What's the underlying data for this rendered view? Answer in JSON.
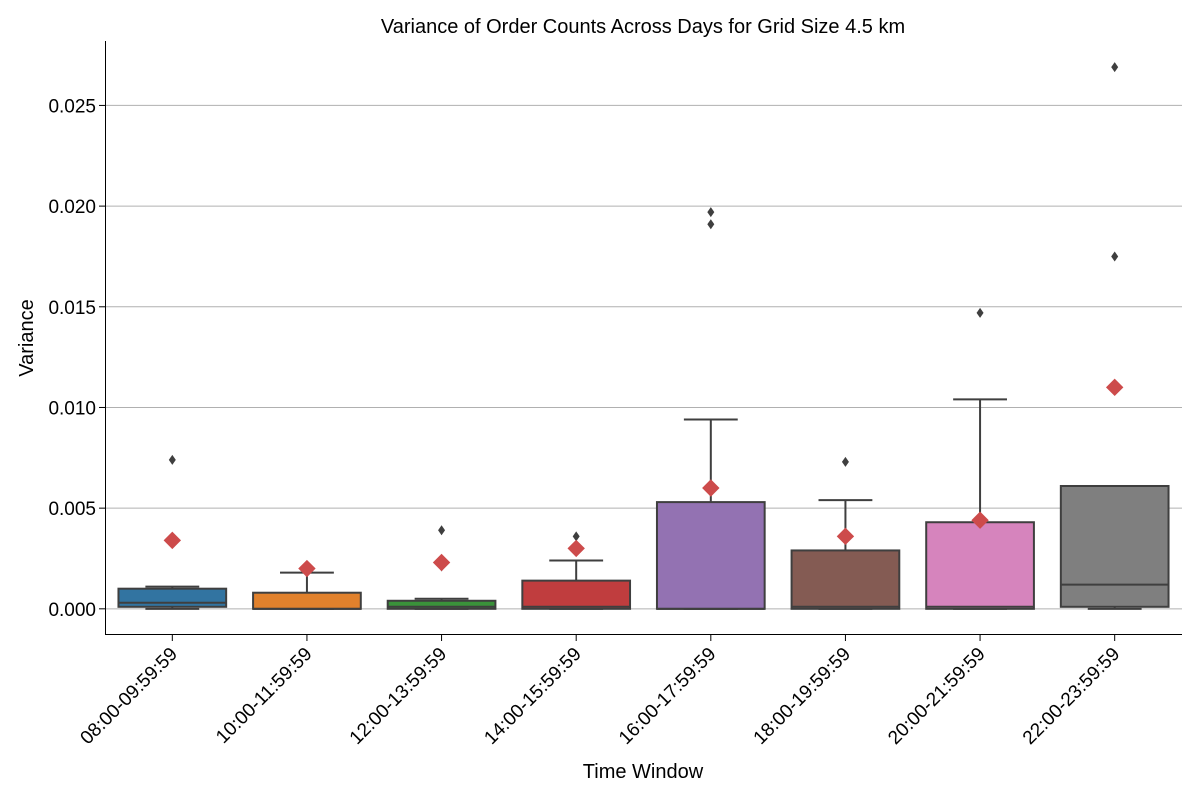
{
  "chart_data": {
    "type": "box",
    "title": "Variance of Order Counts Across Days for Grid Size 4.5 km",
    "xlabel": "Time Window",
    "ylabel": "Variance",
    "ylim": [
      -0.0013,
      0.0282
    ],
    "yticks": [
      0.0,
      0.005,
      0.01,
      0.015,
      0.02,
      0.025
    ],
    "ytick_labels": [
      "0.000",
      "0.005",
      "0.010",
      "0.015",
      "0.020",
      "0.025"
    ],
    "grid": "horizontal",
    "mean_marker": "red diamond",
    "categories": [
      "08:00-09:59:59",
      "10:00-11:59:59",
      "12:00-13:59:59",
      "14:00-15:59:59",
      "16:00-17:59:59",
      "18:00-19:59:59",
      "20:00-21:59:59",
      "22:00-23:59:59"
    ],
    "boxes": [
      {
        "color": "#3274a1",
        "whisker_low": 0.0,
        "q1": 0.0001,
        "median": 0.0003,
        "q3": 0.001,
        "whisker_high": 0.0011,
        "mean": 0.0034,
        "outliers": [
          0.0074
        ]
      },
      {
        "color": "#e1812c",
        "whisker_low": 0.0,
        "q1": 0.0,
        "median": 0.0,
        "q3": 0.0008,
        "whisker_high": 0.0018,
        "mean": 0.002,
        "outliers": []
      },
      {
        "color": "#3a923a",
        "whisker_low": 0.0,
        "q1": 0.0,
        "median": 0.0001,
        "q3": 0.0004,
        "whisker_high": 0.0005,
        "mean": 0.0023,
        "outliers": [
          0.0021,
          0.0039
        ]
      },
      {
        "color": "#c03d3e",
        "whisker_low": 0.0,
        "q1": 0.0,
        "median": 0.0001,
        "q3": 0.0014,
        "whisker_high": 0.0024,
        "mean": 0.003,
        "outliers": [
          0.0036
        ]
      },
      {
        "color": "#9372b2",
        "whisker_low": 0.0,
        "q1": 0.0,
        "median": 0.0,
        "q3": 0.0053,
        "whisker_high": 0.0094,
        "mean": 0.006,
        "outliers": [
          0.0191,
          0.0197
        ]
      },
      {
        "color": "#845b53",
        "whisker_low": 0.0,
        "q1": 0.0,
        "median": 0.0001,
        "q3": 0.0029,
        "whisker_high": 0.0054,
        "mean": 0.0036,
        "outliers": [
          0.0073
        ]
      },
      {
        "color": "#d684bd",
        "whisker_low": 0.0,
        "q1": 0.0,
        "median": 0.0001,
        "q3": 0.0043,
        "whisker_high": 0.0104,
        "mean": 0.0044,
        "outliers": [
          0.0147
        ]
      },
      {
        "color": "#7f7f7f",
        "whisker_low": 0.0,
        "q1": 0.0001,
        "median": 0.0012,
        "q3": 0.0061,
        "whisker_high": 0.0061,
        "mean": 0.011,
        "outliers": [
          0.0175,
          0.0269
        ]
      }
    ]
  }
}
